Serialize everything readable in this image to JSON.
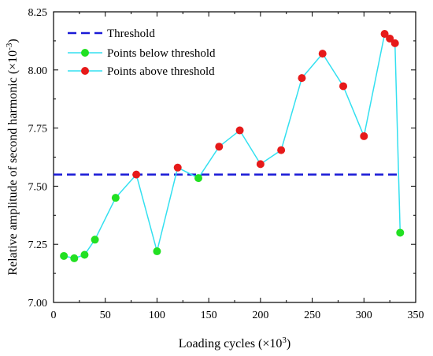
{
  "chart_data": {
    "type": "scatter",
    "xlabel": "Loading cycles (×10",
    "xlabel_sup": "3",
    "xlabel_end": ")",
    "ylabel": "Relative amplitude of second harmonic (×10",
    "ylabel_sup": "-3",
    "ylabel_end": ")",
    "xlim": [
      0,
      350
    ],
    "ylim": [
      7.0,
      8.25
    ],
    "xticks": [
      0,
      50,
      100,
      150,
      200,
      250,
      300,
      350
    ],
    "yticks": [
      7.0,
      7.25,
      7.5,
      7.75,
      8.0,
      8.25
    ],
    "xtick_labels": [
      "0",
      "50",
      "100",
      "150",
      "200",
      "250",
      "300",
      "350"
    ],
    "ytick_labels": [
      "7.00",
      "7.25",
      "7.50",
      "7.75",
      "8.00",
      "8.25"
    ],
    "threshold": {
      "name": "Threshold",
      "y": 7.55,
      "x_range": [
        0,
        335
      ],
      "color": "#1a1ad6",
      "style": "dashed"
    },
    "line": {
      "color": "#33e0f0"
    },
    "legend_placement": "top-left",
    "series": [
      {
        "name": "Points below threshold",
        "color": "#22e022",
        "x": [
          10,
          20,
          30,
          40,
          60,
          100,
          140,
          335
        ],
        "y": [
          7.2,
          7.19,
          7.205,
          7.27,
          7.45,
          7.22,
          7.535,
          7.3
        ]
      },
      {
        "name": "Points above threshold",
        "color": "#e61a1a",
        "x": [
          80,
          120,
          160,
          180,
          200,
          220,
          240,
          260,
          280,
          300,
          320,
          325,
          330
        ],
        "y": [
          7.55,
          7.58,
          7.67,
          7.74,
          7.595,
          7.655,
          7.965,
          8.07,
          7.93,
          7.715,
          8.155,
          8.135,
          8.115
        ]
      }
    ]
  }
}
